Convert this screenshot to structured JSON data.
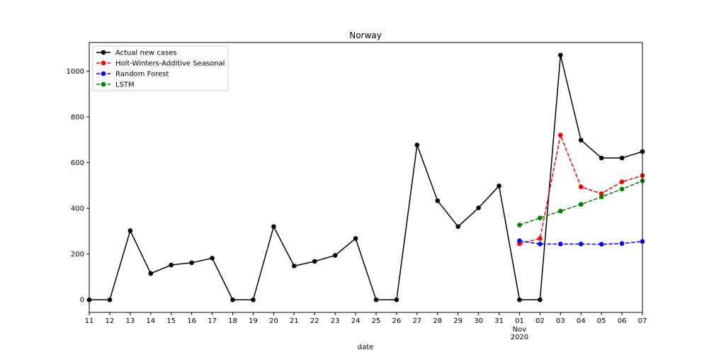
{
  "chart_data": {
    "type": "line",
    "title": "Norway",
    "xlabel": "date",
    "ylabel": "",
    "ylim": [
      -55,
      1125
    ],
    "yticks": [
      0,
      200,
      400,
      600,
      800,
      1000
    ],
    "x_tick_labels": [
      "11",
      "12",
      "13",
      "14",
      "15",
      "16",
      "17",
      "18",
      "19",
      "20",
      "21",
      "22",
      "23",
      "24",
      "25",
      "26",
      "27",
      "28",
      "29",
      "30",
      "31",
      "01",
      "02",
      "03",
      "04",
      "05",
      "06",
      "07"
    ],
    "x_secondary_label": "Nov\n2020",
    "x_secondary_lines": [
      "Nov",
      "2020"
    ],
    "legend_position": "upper-left",
    "grid": false,
    "series": [
      {
        "name": "Actual new cases",
        "color": "#000000",
        "linestyle": "solid",
        "x": [
          "2020-10-11",
          "2020-10-12",
          "2020-10-13",
          "2020-10-14",
          "2020-10-15",
          "2020-10-16",
          "2020-10-17",
          "2020-10-18",
          "2020-10-19",
          "2020-10-20",
          "2020-10-21",
          "2020-10-22",
          "2020-10-23",
          "2020-10-24",
          "2020-10-25",
          "2020-10-26",
          "2020-10-27",
          "2020-10-28",
          "2020-10-29",
          "2020-10-30",
          "2020-10-31",
          "2020-11-01",
          "2020-11-02",
          "2020-11-03",
          "2020-11-04",
          "2020-11-05",
          "2020-11-06",
          "2020-11-07"
        ],
        "values": [
          0,
          0,
          302,
          115,
          152,
          162,
          182,
          0,
          0,
          320,
          148,
          168,
          194,
          268,
          0,
          0,
          677,
          433,
          320,
          402,
          498,
          0,
          0,
          1070,
          698,
          620,
          620,
          648
        ]
      },
      {
        "name": "Holt-Winters-Additive Seasonal",
        "color": "#ff0000",
        "linestyle": "dashed",
        "x": [
          "2020-11-01",
          "2020-11-02",
          "2020-11-03",
          "2020-11-04",
          "2020-11-05",
          "2020-11-06",
          "2020-11-07"
        ],
        "values": [
          245,
          268,
          720,
          494,
          464,
          516,
          543
        ]
      },
      {
        "name": "Random Forest",
        "color": "#0000ff",
        "linestyle": "dashed",
        "x": [
          "2020-11-01",
          "2020-11-02",
          "2020-11-03",
          "2020-11-04",
          "2020-11-05",
          "2020-11-06",
          "2020-11-07"
        ],
        "values": [
          258,
          244,
          244,
          244,
          243,
          246,
          255
        ]
      },
      {
        "name": "LSTM",
        "color": "#008000",
        "linestyle": "dashed",
        "x": [
          "2020-11-01",
          "2020-11-02",
          "2020-11-03",
          "2020-11-04",
          "2020-11-05",
          "2020-11-06",
          "2020-11-07"
        ],
        "values": [
          327,
          358,
          388,
          417,
          450,
          484,
          520
        ]
      }
    ]
  }
}
